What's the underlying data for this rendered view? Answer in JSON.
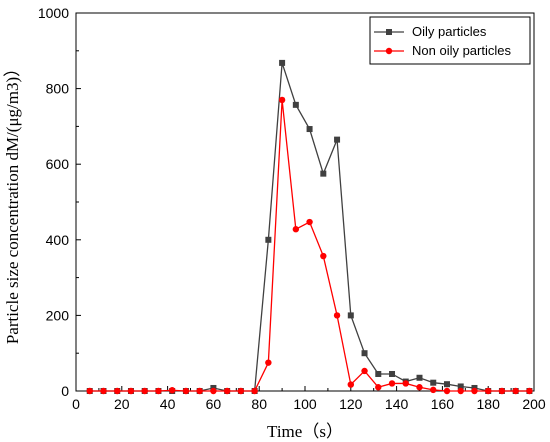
{
  "chart_data": {
    "type": "line",
    "xlabel": "Time（s）",
    "ylabel": "Particle size concentration dM/(μg/m3)）",
    "xlim": [
      0,
      200
    ],
    "ylim": [
      0,
      1000
    ],
    "xticks": [
      "0",
      "20",
      "40",
      "60",
      "80",
      "100",
      "120",
      "140",
      "160",
      "180",
      "200"
    ],
    "yticks": [
      "0",
      "200",
      "400",
      "600",
      "800",
      "1000"
    ],
    "grid": false,
    "legend": {
      "position": "top-right",
      "entries": [
        "Oily particles",
        "Non oily particles"
      ]
    },
    "series": [
      {
        "name": "Oily particles",
        "color": "#404040",
        "marker": "square",
        "x": [
          6,
          12,
          18,
          24,
          30,
          36,
          42,
          48,
          54,
          60,
          66,
          72,
          78,
          84,
          90,
          96,
          102,
          108,
          114,
          120,
          126,
          132,
          138,
          144,
          150,
          156,
          162,
          168,
          174,
          180,
          186,
          192,
          198
        ],
        "y": [
          0,
          0,
          0,
          0,
          0,
          0,
          0,
          0,
          0,
          8,
          0,
          0,
          0,
          400,
          868,
          757,
          693,
          575,
          665,
          200,
          100,
          45,
          45,
          25,
          35,
          22,
          18,
          12,
          8,
          0,
          0,
          0,
          0
        ]
      },
      {
        "name": "Non oily particles",
        "color": "#ff0000",
        "marker": "circle",
        "x": [
          6,
          12,
          18,
          24,
          30,
          36,
          42,
          48,
          54,
          60,
          66,
          72,
          78,
          84,
          90,
          96,
          102,
          108,
          114,
          120,
          126,
          132,
          138,
          144,
          150,
          156,
          162,
          168,
          174,
          180,
          186,
          192,
          198
        ],
        "y": [
          0,
          0,
          0,
          0,
          0,
          0,
          2,
          0,
          0,
          0,
          0,
          0,
          0,
          75,
          770,
          428,
          447,
          357,
          200,
          17,
          53,
          10,
          20,
          20,
          10,
          3,
          0,
          0,
          0,
          0,
          0,
          0,
          0
        ]
      }
    ]
  }
}
